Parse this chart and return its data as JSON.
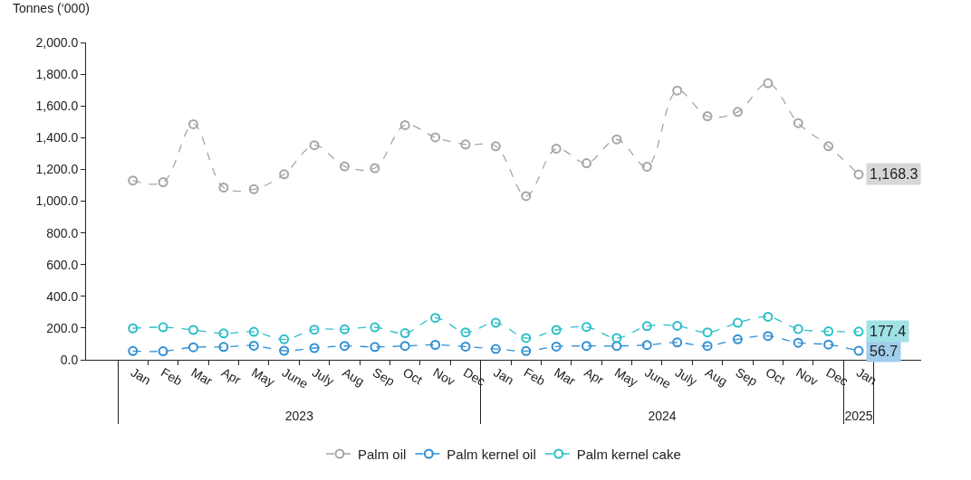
{
  "chart_data": {
    "type": "line",
    "ylabel": "Tonnes (‘000)",
    "categories": [
      "Jan",
      "Feb",
      "Mar",
      "Apr",
      "May",
      "June",
      "July",
      "Aug",
      "Sep",
      "Oct",
      "Nov",
      "Dec",
      "Jan",
      "Feb",
      "Mar",
      "Apr",
      "May",
      "June",
      "July",
      "Aug",
      "Sep",
      "Oct",
      "Nov",
      "Dec",
      "Jan"
    ],
    "annotations": [
      "2023",
      "2024",
      "2025"
    ],
    "series": [
      {
        "name": "Palm oil",
        "color": "#a6a6a6",
        "values": [
          1130,
          1119,
          1485,
          1086,
          1075,
          1169,
          1352,
          1219,
          1208,
          1479,
          1402,
          1357,
          1346,
          1032,
          1331,
          1239,
          1389,
          1217,
          1697,
          1535,
          1562,
          1743,
          1492,
          1346,
          1168.3
        ],
        "value_labels": [
          null,
          null,
          null,
          null,
          null,
          null,
          null,
          null,
          null,
          null,
          null,
          null,
          null,
          null,
          null,
          null,
          null,
          null,
          null,
          null,
          null,
          null,
          null,
          null,
          "1,168.3"
        ]
      },
      {
        "name": "Palm kernel oil",
        "color": "#2f8fd5",
        "values": [
          55,
          54,
          79,
          81,
          89,
          57,
          74,
          87,
          81,
          87,
          94,
          83,
          68,
          55,
          83,
          87,
          87,
          93,
          109,
          87,
          129,
          150,
          107,
          96,
          56.7
        ],
        "value_labels": [
          null,
          null,
          null,
          null,
          null,
          null,
          null,
          null,
          null,
          null,
          null,
          null,
          null,
          null,
          null,
          null,
          null,
          null,
          null,
          null,
          null,
          null,
          null,
          null,
          "56.7"
        ]
      },
      {
        "name": "Palm kernel cake",
        "color": "#2bbfc8",
        "values": [
          198,
          205,
          188,
          166,
          176,
          129,
          190,
          192,
          205,
          168,
          264,
          173,
          233,
          137,
          188,
          207,
          137,
          212,
          214,
          173,
          233,
          271,
          194,
          179,
          177.4
        ],
        "value_labels": [
          null,
          null,
          null,
          null,
          null,
          null,
          null,
          null,
          null,
          null,
          null,
          null,
          null,
          null,
          null,
          null,
          null,
          null,
          null,
          null,
          null,
          null,
          null,
          null,
          "177.4"
        ]
      }
    ],
    "ylim": [
      0,
      2000
    ],
    "yticks": [
      {
        "value": 0,
        "label": "0.0"
      },
      {
        "value": 200,
        "label": "200.0"
      },
      {
        "value": 400,
        "label": "400.0"
      },
      {
        "value": 600,
        "label": "600.0"
      },
      {
        "value": 800,
        "label": "800.0"
      },
      {
        "value": 1000,
        "label": "1,000.0"
      },
      {
        "value": 1200,
        "label": "1,200.0"
      },
      {
        "value": 1400,
        "label": "1,400.0"
      },
      {
        "value": 1600,
        "label": "1,600.0"
      },
      {
        "value": 1800,
        "label": "1,800.0"
      },
      {
        "value": 2000,
        "label": "2,000.0"
      }
    ],
    "marker": "circle",
    "line_style": "dashed",
    "grid": false,
    "legend": "bottom"
  }
}
